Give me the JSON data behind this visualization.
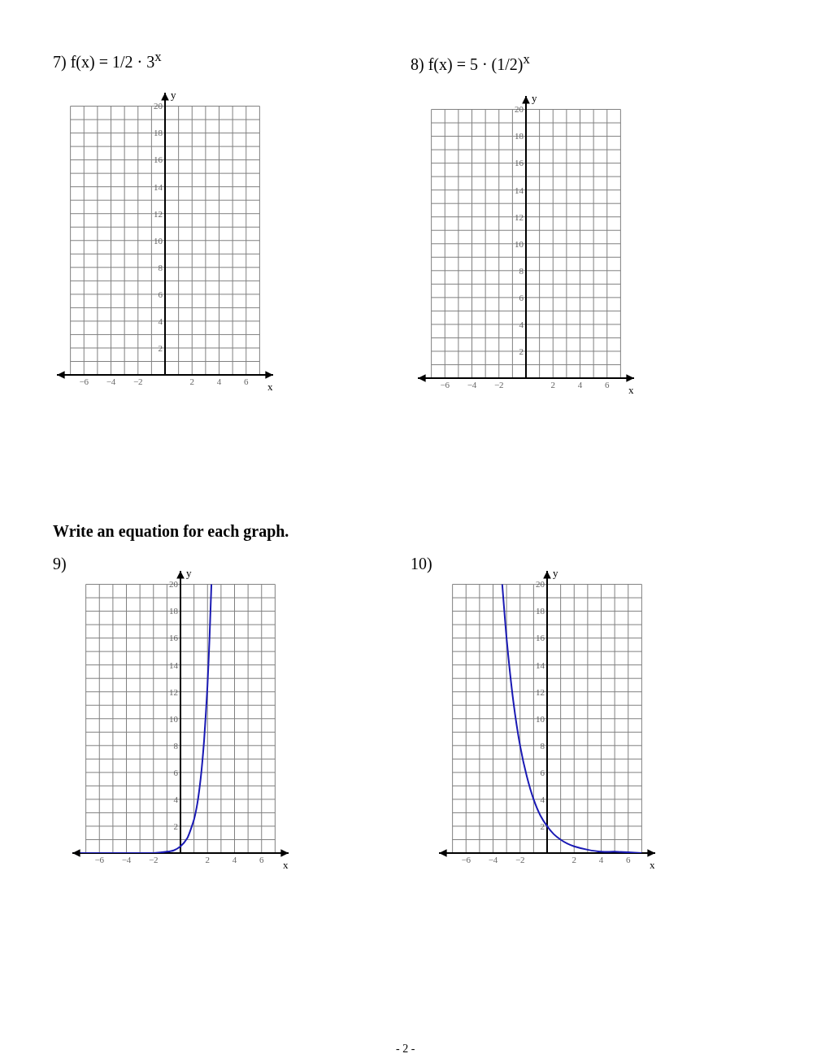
{
  "chart_data": [
    {
      "type": "line",
      "title": "7)  f(x) = 1/2 · 3$^{x}$",
      "xlabel": "x",
      "ylabel": "y",
      "xlim": [
        -8,
        8
      ],
      "ylim": [
        0,
        21
      ],
      "xticks": [
        {
          "value": -7,
          "label": null
        },
        {
          "value": -6,
          "label": "−6"
        },
        {
          "value": -5,
          "label": null
        },
        {
          "value": -4,
          "label": "−4"
        },
        {
          "value": -3,
          "label": null
        },
        {
          "value": -2,
          "label": "−2"
        },
        {
          "value": -1,
          "label": null
        },
        {
          "value": 0,
          "label": null
        },
        {
          "value": 1,
          "label": null
        },
        2,
        {
          "value": 3,
          "label": null
        },
        4,
        {
          "value": 5,
          "label": null
        },
        6,
        {
          "value": 7,
          "label": null
        }
      ],
      "yticks": [
        {
          "value": 1,
          "label": null
        },
        2,
        {
          "value": 3,
          "label": null
        },
        4,
        {
          "value": 5,
          "label": null
        },
        6,
        {
          "value": 7,
          "label": null
        },
        8,
        {
          "value": 9,
          "label": null
        },
        10,
        {
          "value": 11,
          "label": null
        },
        12,
        {
          "value": 13,
          "label": null
        },
        14,
        {
          "value": 15,
          "label": null
        },
        16,
        {
          "value": 17,
          "label": null
        },
        18,
        {
          "value": 19,
          "label": null
        },
        20
      ],
      "grid": true
    },
    {
      "type": "line",
      "title": "8)  f(x) = 5 · (1/2)$^{x}$",
      "xlabel": "x",
      "ylabel": "y",
      "xlim": [
        -8,
        8
      ],
      "ylim": [
        0,
        21
      ],
      "xticks": [
        {
          "value": -7,
          "label": null
        },
        {
          "value": -6,
          "label": "−6"
        },
        {
          "value": -5,
          "label": null
        },
        {
          "value": -4,
          "label": "−4"
        },
        {
          "value": -3,
          "label": null
        },
        {
          "value": -2,
          "label": "−2"
        },
        {
          "value": -1,
          "label": null
        },
        {
          "value": 0,
          "label": null
        },
        {
          "value": 1,
          "label": null
        },
        2,
        {
          "value": 3,
          "label": null
        },
        4,
        {
          "value": 5,
          "label": null
        },
        6,
        {
          "value": 7,
          "label": null
        }
      ],
      "yticks": [
        {
          "value": 1,
          "label": null
        },
        2,
        {
          "value": 3,
          "label": null
        },
        4,
        {
          "value": 5,
          "label": null
        },
        6,
        {
          "value": 7,
          "label": null
        },
        8,
        {
          "value": 9,
          "label": null
        },
        10,
        {
          "value": 11,
          "label": null
        },
        12,
        {
          "value": 13,
          "label": null
        },
        14,
        {
          "value": 15,
          "label": null
        },
        16,
        {
          "value": 17,
          "label": null
        },
        18,
        {
          "value": 19,
          "label": null
        },
        20
      ],
      "grid": true
    },
    {
      "type": "line",
      "title": "9)",
      "annotations": [
        "Write an equation for each graph."
      ],
      "xlabel": "x",
      "ylabel": "y",
      "xlim": [
        -8,
        8
      ],
      "ylim": [
        0,
        21
      ],
      "xticks": [
        {
          "value": -7,
          "label": null
        },
        {
          "value": -6,
          "label": "−6"
        },
        {
          "value": -5,
          "label": null
        },
        {
          "value": -4,
          "label": "−4"
        },
        {
          "value": -3,
          "label": null
        },
        {
          "value": -2,
          "label": "−2"
        },
        {
          "value": -1,
          "label": null
        },
        {
          "value": 0,
          "label": null
        },
        {
          "value": 1,
          "label": null
        },
        2,
        {
          "value": 3,
          "label": null
        },
        4,
        {
          "value": 5,
          "label": null
        },
        6,
        {
          "value": 7,
          "label": null
        }
      ],
      "yticks": [
        {
          "value": 1,
          "label": null
        },
        2,
        {
          "value": 3,
          "label": null
        },
        4,
        {
          "value": 5,
          "label": null
        },
        6,
        {
          "value": 7,
          "label": null
        },
        8,
        {
          "value": 9,
          "label": null
        },
        10,
        {
          "value": 11,
          "label": null
        },
        12,
        {
          "value": 13,
          "label": null
        },
        14,
        {
          "value": 15,
          "label": null
        },
        16,
        {
          "value": 17,
          "label": null
        },
        18,
        {
          "value": 19,
          "label": null
        },
        20
      ],
      "grid": true,
      "marker": "none",
      "line_style": "solid",
      "series": [
        {
          "color": "#1a1ab4",
          "x": [
            -7.5,
            -4,
            -2,
            -1,
            -0.5,
            0,
            0.5,
            1,
            1.25,
            1.5,
            1.75,
            2,
            2.15,
            2.29
          ],
          "values": [
            0,
            0,
            0,
            0.1,
            0.2,
            0.5,
            1.1,
            2.5,
            3.7,
            5.6,
            8.4,
            12.5,
            16,
            20
          ]
        }
      ]
    },
    {
      "type": "line",
      "title": "10)",
      "annotations": [
        "- 2 -"
      ],
      "xlabel": "x",
      "ylabel": "y",
      "xlim": [
        -8,
        8
      ],
      "ylim": [
        0,
        21
      ],
      "xticks": [
        {
          "value": -7,
          "label": null
        },
        {
          "value": -6,
          "label": "−6"
        },
        {
          "value": -5,
          "label": null
        },
        {
          "value": -4,
          "label": "−4"
        },
        {
          "value": -3,
          "label": null
        },
        {
          "value": -2,
          "label": "−2"
        },
        {
          "value": -1,
          "label": null
        },
        {
          "value": 0,
          "label": null
        },
        {
          "value": 1,
          "label": null
        },
        2,
        {
          "value": 3,
          "label": null
        },
        4,
        {
          "value": 5,
          "label": null
        },
        6,
        {
          "value": 7,
          "label": null
        }
      ],
      "yticks": [
        {
          "value": 1,
          "label": null
        },
        2,
        {
          "value": 3,
          "label": null
        },
        4,
        {
          "value": 5,
          "label": null
        },
        6,
        {
          "value": 7,
          "label": null
        },
        8,
        {
          "value": 9,
          "label": null
        },
        10,
        {
          "value": 11,
          "label": null
        },
        12,
        {
          "value": 13,
          "label": null
        },
        14,
        {
          "value": 15,
          "label": null
        },
        16,
        {
          "value": 17,
          "label": null
        },
        18,
        {
          "value": 19,
          "label": null
        },
        20
      ],
      "grid": true,
      "marker": "none",
      "line_style": "solid",
      "series": [
        {
          "color": "#1a1ab4",
          "x": [
            -3.32,
            -3,
            -2.5,
            -2,
            -1.5,
            -1,
            -0.5,
            0,
            0.5,
            1,
            1.5,
            2,
            3,
            4,
            5,
            7
          ],
          "values": [
            20,
            16,
            11.3,
            8,
            5.7,
            4,
            2.8,
            2,
            1.4,
            1,
            0.7,
            0.5,
            0.25,
            0.1,
            0.1,
            0
          ]
        }
      ]
    }
  ]
}
